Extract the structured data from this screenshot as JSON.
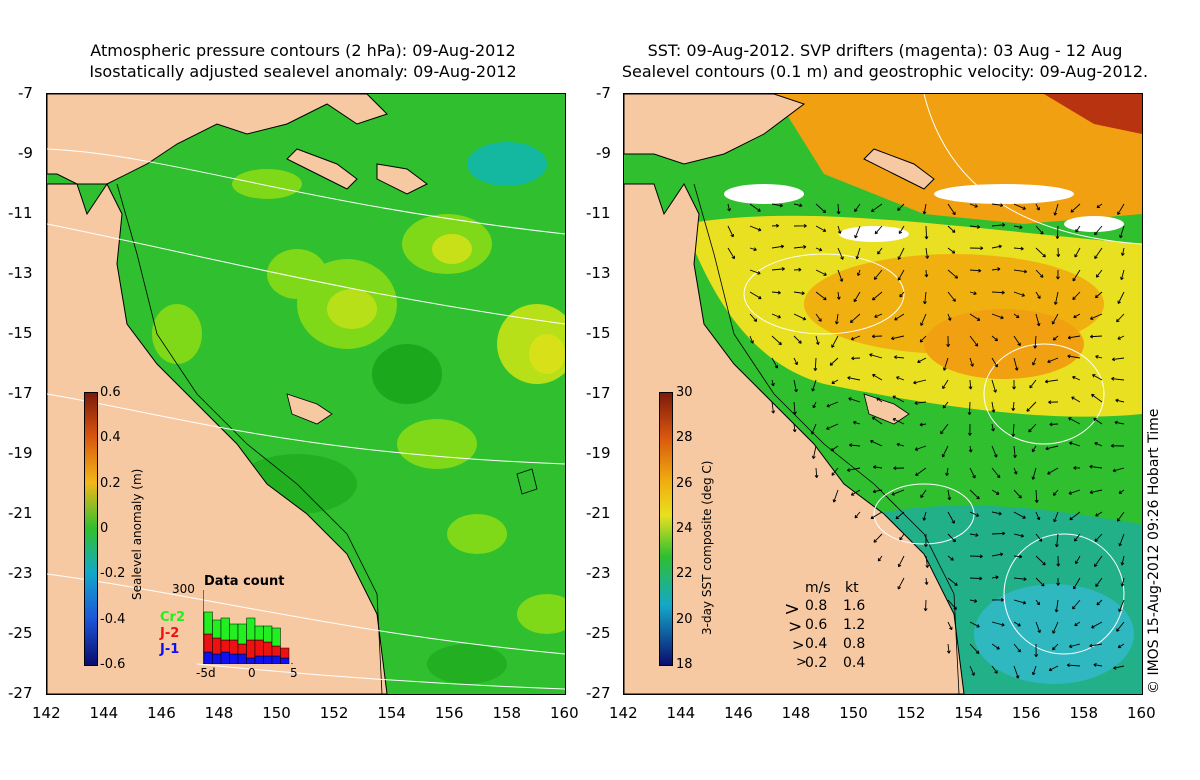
{
  "left_panel": {
    "title_line1": "Atmospheric pressure contours (2 hPa): 09-Aug-2012",
    "title_line2": "Isostatically adjusted sealevel anomaly: 09-Aug-2012",
    "colorbar": {
      "title": "Sealevel anomaly (m)",
      "labels": [
        "0.6",
        "0.4",
        "0.2",
        "0",
        "-0.2",
        "-0.4",
        "-0.6"
      ],
      "colors": [
        "#7a1a0c",
        "#d8560e",
        "#f2b818",
        "#2fbf2f",
        "#14a8c8",
        "#1c56d8",
        "#0b0c6e"
      ]
    },
    "data_count": {
      "title": "Data count",
      "ymax": "300",
      "series": [
        {
          "name": "Cr2",
          "color": "#22ee22"
        },
        {
          "name": "J-2",
          "color": "#ee1111"
        },
        {
          "name": "J-1",
          "color": "#1010ee"
        }
      ],
      "xticks": [
        "-5d",
        "0",
        "5"
      ]
    }
  },
  "right_panel": {
    "title_line1": "SST: 09-Aug-2012. SVP drifters (magenta): 03 Aug - 12 Aug",
    "title_line2": "Sealevel contours (0.1 m) and geostrophic velocity: 09-Aug-2012.",
    "colorbar": {
      "title": "3-day SST composite (deg C)",
      "labels": [
        "30",
        "28",
        "26",
        "24",
        "22",
        "20",
        "18"
      ],
      "colors": [
        "#7a1a0c",
        "#d8560e",
        "#f0b010",
        "#e8e020",
        "#2fbf2f",
        "#14a8c8",
        "#0b0c6e"
      ]
    },
    "velocity_scale": {
      "header_ms": "m/s",
      "header_kt": "kt",
      "rows": [
        {
          "ms": "0.8",
          "kt": "1.6"
        },
        {
          "ms": "0.6",
          "kt": "1.2"
        },
        {
          "ms": "0.4",
          "kt": "0.8"
        },
        {
          "ms": "0.2",
          "kt": "0.4"
        }
      ]
    },
    "copyright": "© IMOS 15-Aug-2012 09:26 Hobart Time"
  },
  "axes": {
    "lat_ticks": [
      "-7",
      "-9",
      "-11",
      "-13",
      "-15",
      "-17",
      "-19",
      "-21",
      "-23",
      "-25",
      "-27"
    ],
    "lon_ticks": [
      "142",
      "144",
      "146",
      "148",
      "150",
      "152",
      "154",
      "156",
      "158",
      "160"
    ]
  },
  "colors": {
    "land": "#f7c9a3",
    "sla_green": "#2fbf2f",
    "sla_light": "#7fd818",
    "sla_yellow": "#d8e018",
    "sst_yellow": "#e8e020",
    "sst_orange": "#f0a010"
  }
}
